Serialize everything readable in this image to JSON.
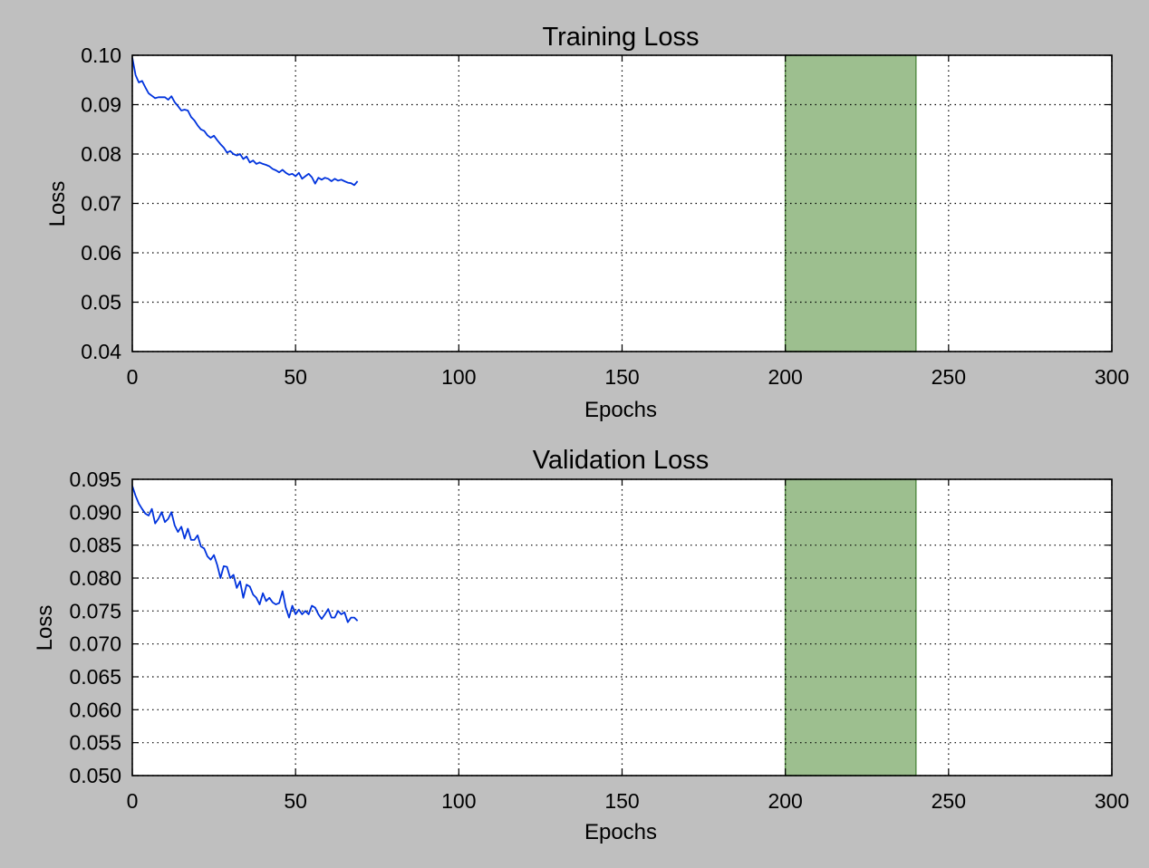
{
  "figure": {
    "background": "#bfbfbf"
  },
  "chart_data": [
    {
      "type": "line",
      "title": "Training Loss",
      "xlabel": "Epochs",
      "ylabel": "Loss",
      "xlim": [
        0,
        300
      ],
      "ylim": [
        0.04,
        0.1
      ],
      "xticks": [
        0,
        50,
        100,
        150,
        200,
        250,
        300
      ],
      "xtick_labels": [
        "0",
        "50",
        "100",
        "150",
        "200",
        "250",
        "300"
      ],
      "yticks": [
        0.04,
        0.05,
        0.06,
        0.07,
        0.08,
        0.09,
        0.1
      ],
      "ytick_labels": [
        "0.04",
        "0.05",
        "0.06",
        "0.07",
        "0.08",
        "0.09",
        "0.10"
      ],
      "grid": true,
      "grid_style": "dotted",
      "line_color": "#0033dd",
      "shaded_region": {
        "x": [
          200,
          240
        ],
        "color": "#9dbf8f",
        "edge_color": "#5a8f4a"
      },
      "series": [
        {
          "x": [
            0,
            1,
            2,
            3,
            4,
            5,
            6,
            7,
            8,
            9,
            10,
            11,
            12,
            13,
            14,
            15,
            16,
            17,
            18,
            19,
            20,
            21,
            22,
            23,
            24,
            25,
            26,
            27,
            28,
            29,
            30,
            31,
            32,
            33,
            34,
            35,
            36,
            37,
            38,
            39,
            40,
            41,
            42,
            43,
            44,
            45,
            46,
            47,
            48,
            49,
            50,
            51,
            52,
            53,
            54,
            55,
            56,
            57,
            58,
            59,
            60,
            61,
            62,
            63,
            64,
            65,
            66,
            67,
            68,
            69
          ],
          "values": [
            0.0995,
            0.096,
            0.0945,
            0.0948,
            0.0935,
            0.0923,
            0.0918,
            0.0913,
            0.0915,
            0.0915,
            0.0915,
            0.091,
            0.0917,
            0.0905,
            0.0897,
            0.0888,
            0.089,
            0.0888,
            0.0875,
            0.0868,
            0.0858,
            0.085,
            0.0847,
            0.0838,
            0.0833,
            0.0837,
            0.0828,
            0.082,
            0.0813,
            0.0803,
            0.0806,
            0.08,
            0.0797,
            0.08,
            0.079,
            0.0795,
            0.0783,
            0.0787,
            0.078,
            0.0783,
            0.078,
            0.0778,
            0.0775,
            0.077,
            0.0767,
            0.0763,
            0.0768,
            0.0762,
            0.0758,
            0.076,
            0.0755,
            0.0762,
            0.075,
            0.0755,
            0.076,
            0.0753,
            0.074,
            0.0752,
            0.0748,
            0.0752,
            0.075,
            0.0745,
            0.075,
            0.0746,
            0.0748,
            0.0745,
            0.0742,
            0.0741,
            0.0737,
            0.0745
          ]
        }
      ]
    },
    {
      "type": "line",
      "title": "Validation Loss",
      "xlabel": "Epochs",
      "ylabel": "Loss",
      "xlim": [
        0,
        300
      ],
      "ylim": [
        0.05,
        0.095
      ],
      "xticks": [
        0,
        50,
        100,
        150,
        200,
        250,
        300
      ],
      "xtick_labels": [
        "0",
        "50",
        "100",
        "150",
        "200",
        "250",
        "300"
      ],
      "yticks": [
        0.05,
        0.055,
        0.06,
        0.065,
        0.07,
        0.075,
        0.08,
        0.085,
        0.09,
        0.095
      ],
      "ytick_labels": [
        "0.050",
        "0.055",
        "0.060",
        "0.065",
        "0.070",
        "0.075",
        "0.080",
        "0.085",
        "0.090",
        "0.095"
      ],
      "grid": true,
      "grid_style": "dotted",
      "line_color": "#0033dd",
      "shaded_region": {
        "x": [
          200,
          240
        ],
        "color": "#9dbf8f",
        "edge_color": "#5a8f4a"
      },
      "series": [
        {
          "x": [
            0,
            1,
            2,
            3,
            4,
            5,
            6,
            7,
            8,
            9,
            10,
            11,
            12,
            13,
            14,
            15,
            16,
            17,
            18,
            19,
            20,
            21,
            22,
            23,
            24,
            25,
            26,
            27,
            28,
            29,
            30,
            31,
            32,
            33,
            34,
            35,
            36,
            37,
            38,
            39,
            40,
            41,
            42,
            43,
            44,
            45,
            46,
            47,
            48,
            49,
            50,
            51,
            52,
            53,
            54,
            55,
            56,
            57,
            58,
            59,
            60,
            61,
            62,
            63,
            64,
            65,
            66,
            67,
            68,
            69
          ],
          "values": [
            0.094,
            0.0925,
            0.0913,
            0.0905,
            0.0898,
            0.0895,
            0.0905,
            0.0883,
            0.089,
            0.09,
            0.0885,
            0.089,
            0.09,
            0.088,
            0.087,
            0.0878,
            0.086,
            0.0875,
            0.0858,
            0.0858,
            0.0865,
            0.0848,
            0.0845,
            0.0833,
            0.0828,
            0.0835,
            0.082,
            0.08,
            0.0818,
            0.0817,
            0.08,
            0.0805,
            0.0785,
            0.0795,
            0.077,
            0.079,
            0.0787,
            0.0775,
            0.077,
            0.076,
            0.0777,
            0.0765,
            0.077,
            0.0763,
            0.076,
            0.0762,
            0.078,
            0.0755,
            0.074,
            0.0758,
            0.0745,
            0.0752,
            0.0745,
            0.075,
            0.0745,
            0.0758,
            0.0755,
            0.0745,
            0.0738,
            0.0745,
            0.0753,
            0.074,
            0.074,
            0.075,
            0.0745,
            0.0748,
            0.0733,
            0.074,
            0.074,
            0.0735
          ]
        }
      ]
    }
  ]
}
